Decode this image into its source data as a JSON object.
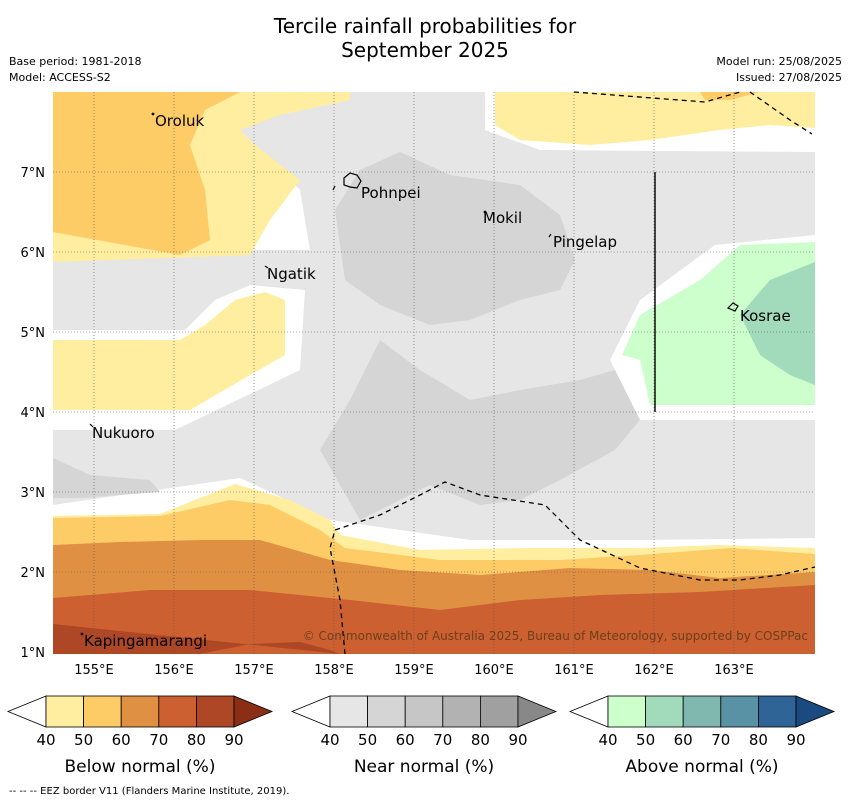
{
  "title_line1": "Tercile rainfall probabilities for",
  "title_line2": "September 2025",
  "base_period": "Base period: 1981-2018",
  "model": "Model: ACCESS-S2",
  "model_run": "Model run: 25/08/2025",
  "issued": "Issued: 27/08/2025",
  "copyright": "© Commonwealth of Australia 2025, Bureau of Meteorology, supported by COSPPac",
  "eez_credit": "--  --  -- EEZ border V11 (Flanders Marine Institute, 2019).",
  "map": {
    "lon_ticks": [
      "155°E",
      "156°E",
      "157°E",
      "158°E",
      "159°E",
      "160°E",
      "161°E",
      "162°E",
      "163°E"
    ],
    "lat_ticks": [
      "7°N",
      "6°N",
      "5°N",
      "4°N",
      "3°N",
      "2°N",
      "1°N"
    ],
    "places": [
      {
        "name": "Oroluk"
      },
      {
        "name": "Pohnpei"
      },
      {
        "name": "Mokil"
      },
      {
        "name": "Pingelap"
      },
      {
        "name": "Ngatik"
      },
      {
        "name": "Kosrae"
      },
      {
        "name": "Nukuoro"
      },
      {
        "name": "Kapingamarangi"
      }
    ]
  },
  "legends": [
    {
      "label": "Below normal (%)",
      "ticks": [
        "40",
        "50",
        "60",
        "70",
        "80",
        "90"
      ],
      "colors": [
        "#ffeda0",
        "#fecc67",
        "#e09043",
        "#cd6030",
        "#ae4726",
        "#8b2e16"
      ]
    },
    {
      "label": "Near normal (%)",
      "ticks": [
        "40",
        "50",
        "60",
        "70",
        "80",
        "90"
      ],
      "colors": [
        "#e6e6e6",
        "#d5d5d5",
        "#c6c6c6",
        "#b2b2b2",
        "#a0a0a0",
        "#888888"
      ]
    },
    {
      "label": "Above normal (%)",
      "ticks": [
        "40",
        "50",
        "60",
        "70",
        "80",
        "90"
      ],
      "colors": [
        "#ccffcc",
        "#a1dbbc",
        "#80b8b0",
        "#5892a4",
        "#2e6496",
        "#1a4a80"
      ]
    }
  ]
}
